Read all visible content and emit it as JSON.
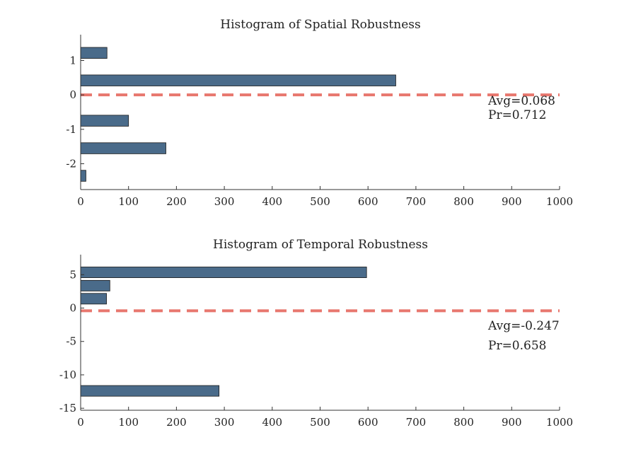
{
  "colors": {
    "bar": "#4a6b8a",
    "mean_line": "#e8776e"
  },
  "chart_data": [
    {
      "type": "bar",
      "orientation": "horizontal",
      "title": "Histogram of Spatial Robustness",
      "xlim": [
        0,
        1000
      ],
      "ylim": [
        -2.75,
        1.75
      ],
      "xticks": [
        "0",
        "100",
        "200",
        "300",
        "400",
        "500",
        "600",
        "700",
        "800",
        "900",
        "1000"
      ],
      "yticks": [
        {
          "value": 1,
          "label": "1"
        },
        {
          "value": 0,
          "label": "0"
        },
        {
          "value": -1,
          "label": "-1"
        },
        {
          "value": -2,
          "label": "-2"
        }
      ],
      "bins": [
        {
          "center": 1.22,
          "width": 0.32,
          "count": 55
        },
        {
          "center": 0.42,
          "width": 0.32,
          "count": 658
        },
        {
          "center": -0.75,
          "width": 0.32,
          "count": 100
        },
        {
          "center": -1.55,
          "width": 0.32,
          "count": 178
        },
        {
          "center": -2.35,
          "width": 0.32,
          "count": 11
        }
      ],
      "mean_line": 0.0,
      "annotations": [
        "Avg=0.068",
        "Pr=0.712"
      ]
    },
    {
      "type": "bar",
      "orientation": "horizontal",
      "title": "Histogram of Temporal Robustness",
      "xlim": [
        0,
        1000
      ],
      "ylim": [
        -15.3,
        8
      ],
      "xticks": [
        "0",
        "100",
        "200",
        "300",
        "400",
        "500",
        "600",
        "700",
        "800",
        "900",
        "1000"
      ],
      "yticks": [
        {
          "value": 5,
          "label": "5"
        },
        {
          "value": 0,
          "label": "0"
        },
        {
          "value": -5,
          "label": "-5"
        },
        {
          "value": -10,
          "label": "-10"
        },
        {
          "value": -15,
          "label": "-15"
        }
      ],
      "bins": [
        {
          "center": 5.35,
          "width": 1.6,
          "count": 597
        },
        {
          "center": 3.35,
          "width": 1.6,
          "count": 61
        },
        {
          "center": 1.4,
          "width": 1.6,
          "count": 54
        },
        {
          "center": -12.4,
          "width": 1.6,
          "count": 289
        }
      ],
      "mean_line": -0.4,
      "annotations": [
        "Avg=-0.247",
        "Pr=0.658"
      ]
    }
  ]
}
